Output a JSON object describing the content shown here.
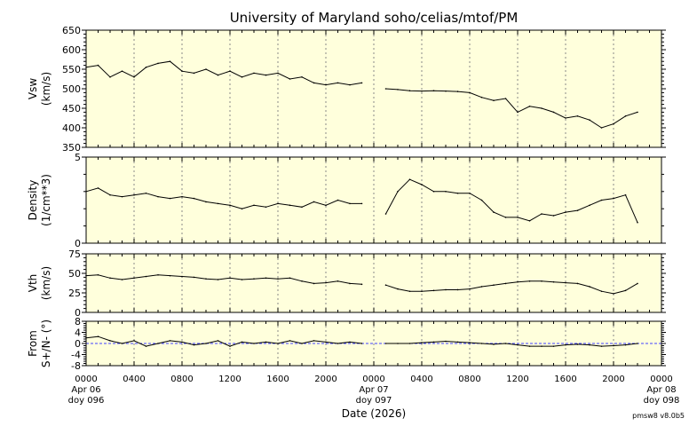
{
  "chart_data": {
    "type": "line",
    "title": "University of Maryland  soho/celias/mtof/PM",
    "xlabel": "Date (2026)",
    "footer": "pmsw8 v8.0b5",
    "x_unit": "hours since 2026-04-06 00:00",
    "xlim": [
      0,
      48
    ],
    "x_ticks": [
      {
        "h": 0,
        "lines": [
          "0000",
          "Apr 06",
          "doy 096"
        ]
      },
      {
        "h": 4,
        "lines": [
          "0400"
        ]
      },
      {
        "h": 8,
        "lines": [
          "0800"
        ]
      },
      {
        "h": 12,
        "lines": [
          "1200"
        ]
      },
      {
        "h": 16,
        "lines": [
          "1600"
        ]
      },
      {
        "h": 20,
        "lines": [
          "2000"
        ]
      },
      {
        "h": 24,
        "lines": [
          "0000",
          "Apr 07",
          "doy 097"
        ]
      },
      {
        "h": 28,
        "lines": [
          "0400"
        ]
      },
      {
        "h": 32,
        "lines": [
          "0800"
        ]
      },
      {
        "h": 36,
        "lines": [
          "1200"
        ]
      },
      {
        "h": 40,
        "lines": [
          "1600"
        ]
      },
      {
        "h": 44,
        "lines": [
          "2000"
        ]
      },
      {
        "h": 48,
        "lines": [
          "0000",
          "Apr 08",
          "doy 098"
        ]
      }
    ],
    "x": [
      0,
      1,
      2,
      3,
      4,
      5,
      6,
      7,
      8,
      9,
      10,
      11,
      12,
      13,
      14,
      15,
      16,
      17,
      18,
      19,
      20,
      21,
      22,
      23,
      24,
      25,
      26,
      27,
      28,
      29,
      30,
      31,
      32,
      33,
      34,
      35,
      36,
      37,
      38,
      39,
      40,
      41,
      42,
      43,
      44,
      45,
      46
    ],
    "panels": [
      {
        "name": "vsw",
        "ylabel": [
          "Vsw",
          "(km/s)"
        ],
        "ylim": [
          350,
          650
        ],
        "yticks": [
          350,
          400,
          450,
          500,
          550,
          600,
          650
        ],
        "zero_line": false,
        "values": [
          555,
          560,
          530,
          545,
          530,
          555,
          565,
          570,
          545,
          540,
          550,
          535,
          545,
          530,
          540,
          535,
          540,
          525,
          530,
          515,
          510,
          515,
          510,
          515,
          null,
          500,
          498,
          495,
          494,
          495,
          494,
          493,
          490,
          478,
          470,
          475,
          440,
          455,
          450,
          440,
          425,
          430,
          420,
          400,
          410,
          430,
          440
        ]
      },
      {
        "name": "density",
        "ylabel": [
          "Density",
          "(1/cm**3)"
        ],
        "ylim": [
          0,
          5
        ],
        "yticks": [
          0,
          5
        ],
        "zero_line": false,
        "values": [
          3,
          3.2,
          2.8,
          2.7,
          2.8,
          2.9,
          2.7,
          2.6,
          2.7,
          2.6,
          2.4,
          2.3,
          2.2,
          2.0,
          2.2,
          2.1,
          2.3,
          2.2,
          2.1,
          2.4,
          2.2,
          2.5,
          2.3,
          2.3,
          null,
          1.7,
          3,
          3.7,
          3.4,
          3,
          3,
          2.9,
          2.9,
          2.5,
          1.8,
          1.5,
          1.5,
          1.3,
          1.7,
          1.6,
          1.8,
          1.9,
          2.2,
          2.5,
          2.6,
          2.8,
          1.2
        ]
      },
      {
        "name": "vth",
        "ylabel": [
          "Vth",
          "(km/s)"
        ],
        "ylim": [
          0,
          75
        ],
        "yticks": [
          0,
          25,
          50,
          75
        ],
        "zero_line": false,
        "values": [
          47,
          48,
          44,
          42,
          44,
          46,
          48,
          47,
          46,
          45,
          43,
          42,
          44,
          42,
          43,
          44,
          43,
          44,
          40,
          37,
          38,
          40,
          37,
          36,
          null,
          35,
          30,
          27,
          27,
          28,
          29,
          29,
          30,
          33,
          35,
          37,
          39,
          40,
          40,
          39,
          38,
          37,
          33,
          27,
          24,
          28,
          37
        ]
      },
      {
        "name": "flow",
        "ylabel": [
          "From",
          "S+/N- (°)"
        ],
        "ylim": [
          -8,
          8
        ],
        "yticks": [
          -8,
          -4,
          0,
          4,
          8
        ],
        "zero_line": true,
        "values": [
          2,
          2.5,
          1,
          0,
          1,
          -1,
          0,
          1,
          0.5,
          -0.5,
          0,
          1,
          -1,
          0.5,
          0,
          0.5,
          0,
          1,
          0,
          1,
          0.5,
          0,
          0.5,
          0,
          null,
          0,
          0,
          0,
          0.3,
          0.5,
          0.8,
          0.5,
          0.3,
          0,
          -0.3,
          0,
          -0.5,
          -1,
          -1,
          -1,
          -0.5,
          -0.3,
          -0.5,
          -1,
          -0.8,
          -0.5,
          0
        ]
      }
    ],
    "grid": "vertical dotted every 4 h",
    "colors": {
      "plot_bg": "#ffffdc",
      "line": "#000000",
      "zero_line": "#4040ff",
      "grid": "#888888"
    }
  }
}
